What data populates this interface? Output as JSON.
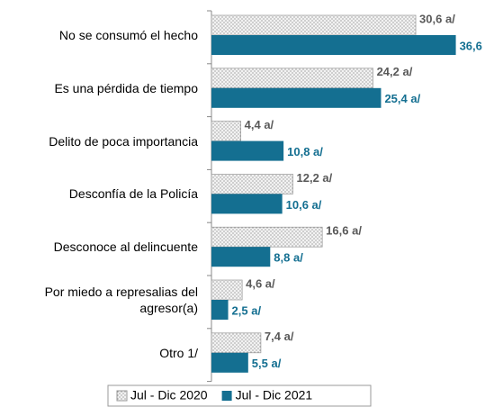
{
  "chart_data": {
    "type": "bar",
    "orientation": "horizontal",
    "categories": [
      "No se consumó el hecho",
      "Es una pérdida de tiempo",
      "Delito de poca importancia",
      "Desconfía de la Policía",
      "Desconoce al delincuente",
      "Por miedo a represalias del agresor(a)",
      "Otro 1/"
    ],
    "series": [
      {
        "name": "Jul - Dic 2020",
        "color": "#f2f2f2",
        "pattern": "dots",
        "values": [
          30.6,
          24.2,
          4.4,
          12.2,
          16.6,
          4.6,
          7.4
        ],
        "value_labels": [
          "30,6 a/",
          "24,2 a/",
          "4,4 a/",
          "12,2 a/",
          "16,6 a/",
          "4,6 a/",
          "7,4 a/"
        ]
      },
      {
        "name": "Jul - Dic 2021",
        "color": "#146f91",
        "values": [
          36.6,
          25.4,
          10.8,
          10.6,
          8.8,
          2.5,
          5.5
        ],
        "value_labels": [
          "36,6",
          "25,4 a/",
          "10,8 a/",
          "10,6 a/",
          "8,8 a/",
          "2,5 a/",
          "5,5 a/"
        ]
      }
    ],
    "legend": "bottom"
  }
}
